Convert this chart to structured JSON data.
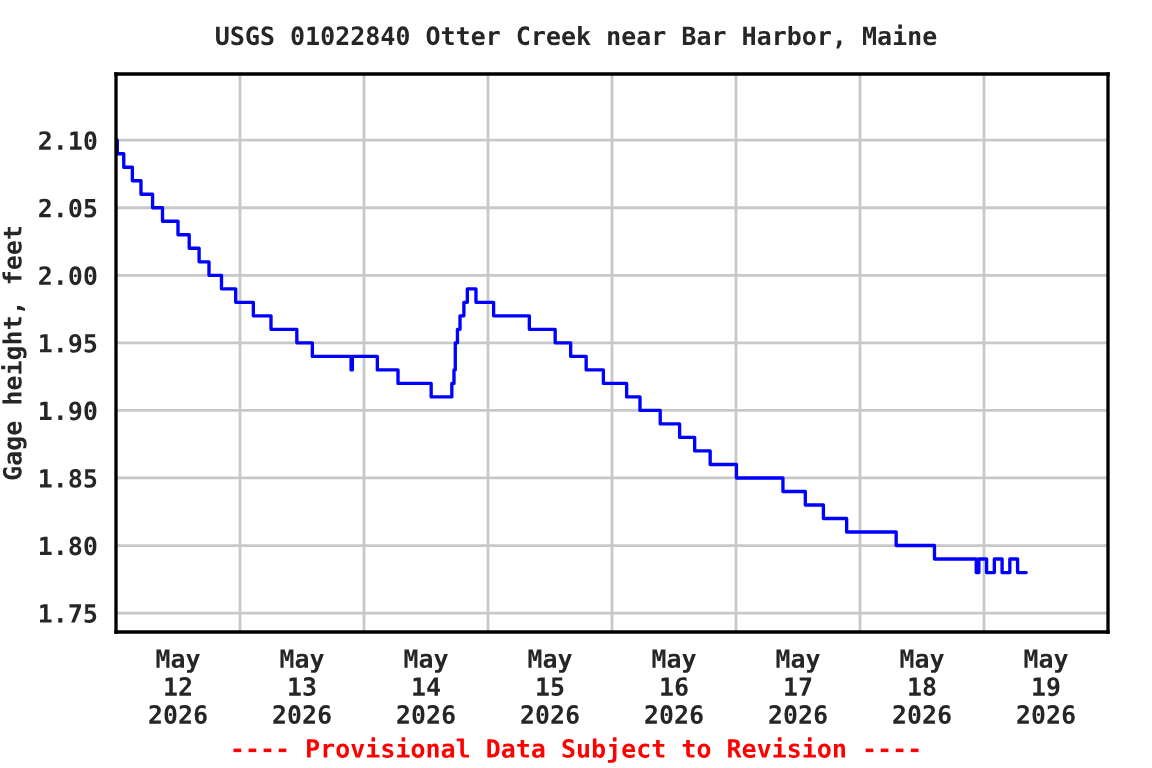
{
  "chart_data": {
    "type": "step",
    "title": "USGS 01022840 Otter Creek near Bar Harbor, Maine",
    "ylabel": "Gage height, feet",
    "annotations": [
      "---- Provisional Data Subject to Revision ----"
    ],
    "x": [
      "2026-05-12T00:00",
      "2026-05-12T00:15",
      "2026-05-12T01:30",
      "2026-05-12T03:10",
      "2026-05-12T04:50",
      "2026-05-12T07:05",
      "2026-05-12T09:00",
      "2026-05-12T12:00",
      "2026-05-12T14:10",
      "2026-05-12T16:05",
      "2026-05-12T18:00",
      "2026-05-12T20:25",
      "2026-05-12T23:10",
      "2026-05-13T02:35",
      "2026-05-13T06:00",
      "2026-05-13T11:00",
      "2026-05-13T14:00",
      "2026-05-13T21:30",
      "2026-05-13T21:45",
      "2026-05-14T02:35",
      "2026-05-14T06:35",
      "2026-05-14T13:00",
      "2026-05-14T17:00",
      "2026-05-14T17:25",
      "2026-05-14T17:40",
      "2026-05-14T18:05",
      "2026-05-14T18:35",
      "2026-05-14T19:20",
      "2026-05-14T20:00",
      "2026-05-14T21:40",
      "2026-05-15T01:05",
      "2026-05-15T08:00",
      "2026-05-15T13:00",
      "2026-05-15T16:00",
      "2026-05-15T19:00",
      "2026-05-15T22:20",
      "2026-05-16T02:50",
      "2026-05-16T05:25",
      "2026-05-16T09:20",
      "2026-05-16T13:05",
      "2026-05-16T16:00",
      "2026-05-16T19:00",
      "2026-05-17T00:05",
      "2026-05-17T09:05",
      "2026-05-17T13:25",
      "2026-05-17T16:55",
      "2026-05-17T21:25",
      "2026-05-18T07:00",
      "2026-05-18T14:25",
      "2026-05-18T22:30",
      "2026-05-18T23:00",
      "2026-05-19T00:30",
      "2026-05-19T02:00",
      "2026-05-19T03:30",
      "2026-05-19T05:00",
      "2026-05-19T06:30",
      "2026-05-19T08:10"
    ],
    "series": [
      {
        "color": "#0000ff",
        "values": [
          2.1,
          2.09,
          2.08,
          2.07,
          2.06,
          2.05,
          2.04,
          2.03,
          2.02,
          2.01,
          2.0,
          1.99,
          1.98,
          1.97,
          1.96,
          1.95,
          1.94,
          1.93,
          1.94,
          1.93,
          1.92,
          1.91,
          1.92,
          1.93,
          1.95,
          1.96,
          1.97,
          1.98,
          1.99,
          1.98,
          1.97,
          1.96,
          1.95,
          1.94,
          1.93,
          1.92,
          1.91,
          1.9,
          1.89,
          1.88,
          1.87,
          1.86,
          1.85,
          1.84,
          1.83,
          1.82,
          1.81,
          1.8,
          1.79,
          1.78,
          1.79,
          1.78,
          1.79,
          1.78,
          1.79,
          1.78,
          1.78
        ]
      }
    ],
    "xlim": [
      "2026-05-12T00:00",
      "2026-05-20T00:00"
    ],
    "xticks": [
      {
        "value": "2026-05-13T00:00",
        "label": null
      },
      {
        "value": "2026-05-14T00:00",
        "label": null
      },
      {
        "value": "2026-05-15T00:00",
        "label": null
      },
      {
        "value": "2026-05-16T00:00",
        "label": null
      },
      {
        "value": "2026-05-17T00:00",
        "label": null
      },
      {
        "value": "2026-05-18T00:00",
        "label": null
      },
      {
        "value": "2026-05-19T00:00",
        "label": null
      },
      {
        "value": "2026-05-12T12:00",
        "label": "May\n12\n2026"
      },
      {
        "value": "2026-05-13T12:00",
        "label": "May\n13\n2026"
      },
      {
        "value": "2026-05-14T12:00",
        "label": "May\n14\n2026"
      },
      {
        "value": "2026-05-15T12:00",
        "label": "May\n15\n2026"
      },
      {
        "value": "2026-05-16T12:00",
        "label": "May\n16\n2026"
      },
      {
        "value": "2026-05-17T12:00",
        "label": "May\n17\n2026"
      },
      {
        "value": "2026-05-18T12:00",
        "label": "May\n18\n2026"
      },
      {
        "value": "2026-05-19T12:00",
        "label": "May\n19\n2026"
      }
    ],
    "ylim": [
      1.736,
      2.149
    ],
    "yticks": [
      {
        "value": 1.75,
        "label": "1.75"
      },
      {
        "value": 1.8,
        "label": "1.80"
      },
      {
        "value": 1.85,
        "label": "1.85"
      },
      {
        "value": 1.9,
        "label": "1.90"
      },
      {
        "value": 1.95,
        "label": "1.95"
      },
      {
        "value": 2.0,
        "label": "2.00"
      },
      {
        "value": 2.05,
        "label": "2.05"
      },
      {
        "value": 2.1,
        "label": "2.10"
      }
    ],
    "grid": true
  }
}
